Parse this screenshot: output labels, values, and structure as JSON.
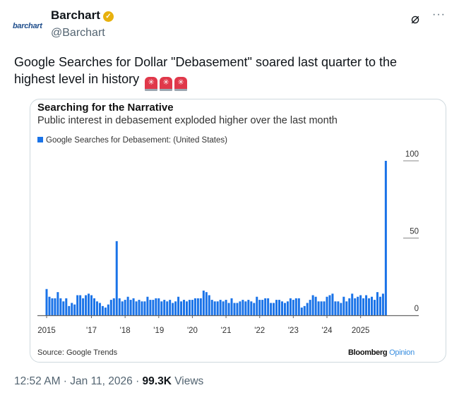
{
  "tweet": {
    "logo_text": "barchart",
    "author_name": "Barchart",
    "verified": true,
    "handle": "@Barchart",
    "text": "Google Searches for Dollar \"Debasement\" soared last quarter to the highest level in history",
    "emoji": [
      "rotating-light",
      "rotating-light",
      "rotating-light"
    ],
    "time": "12:52 AM",
    "date": "Jan 11, 2026",
    "views": "99.3K",
    "views_label": "Views",
    "icons": [
      "grok-icon",
      "more-icon"
    ]
  },
  "chart_data": {
    "type": "bar",
    "title": "Searching for the Narrative",
    "subtitle": "Public interest in debasement exploded higher over the last month",
    "legend": "Google Searches for Debasement: (United States)",
    "series_color": "#1a73e8",
    "x_start": "2015-09",
    "x_frequency": "monthly",
    "x_ticks": [
      {
        "label": "2015",
        "date": "2015-09"
      },
      {
        "label": "'17",
        "date": "2017-01"
      },
      {
        "label": "'18",
        "date": "2018-01"
      },
      {
        "label": "'19",
        "date": "2019-01"
      },
      {
        "label": "'20",
        "date": "2020-01"
      },
      {
        "label": "'21",
        "date": "2021-01"
      },
      {
        "label": "'22",
        "date": "2022-01"
      },
      {
        "label": "'23",
        "date": "2023-01"
      },
      {
        "label": "'24",
        "date": "2024-01"
      },
      {
        "label": "2025",
        "date": "2025-01"
      }
    ],
    "y_ticks": [
      "100",
      "50",
      "0"
    ],
    "ylim": [
      0,
      100
    ],
    "values": [
      17,
      12,
      11,
      11,
      15,
      11,
      9,
      11,
      6,
      8,
      7,
      13,
      13,
      11,
      13,
      14,
      13,
      11,
      9,
      8,
      6,
      5,
      7,
      10,
      11,
      48,
      11,
      9,
      10,
      12,
      10,
      11,
      9,
      10,
      9,
      9,
      12,
      10,
      10,
      11,
      11,
      9,
      10,
      9,
      10,
      8,
      9,
      12,
      9,
      10,
      9,
      10,
      10,
      11,
      11,
      11,
      16,
      15,
      13,
      10,
      9,
      9,
      10,
      9,
      10,
      8,
      11,
      8,
      8,
      9,
      10,
      9,
      10,
      9,
      8,
      12,
      10,
      10,
      11,
      11,
      8,
      8,
      10,
      10,
      9,
      8,
      9,
      11,
      10,
      11,
      11,
      5,
      6,
      8,
      10,
      13,
      12,
      9,
      9,
      9,
      12,
      13,
      14,
      9,
      9,
      8,
      12,
      9,
      11,
      14,
      11,
      12,
      13,
      11,
      13,
      11,
      12,
      10,
      15,
      12,
      14,
      100
    ],
    "source": "Source: Google Trends",
    "brand": "Bloomberg",
    "brand_suffix": "Opinion"
  }
}
